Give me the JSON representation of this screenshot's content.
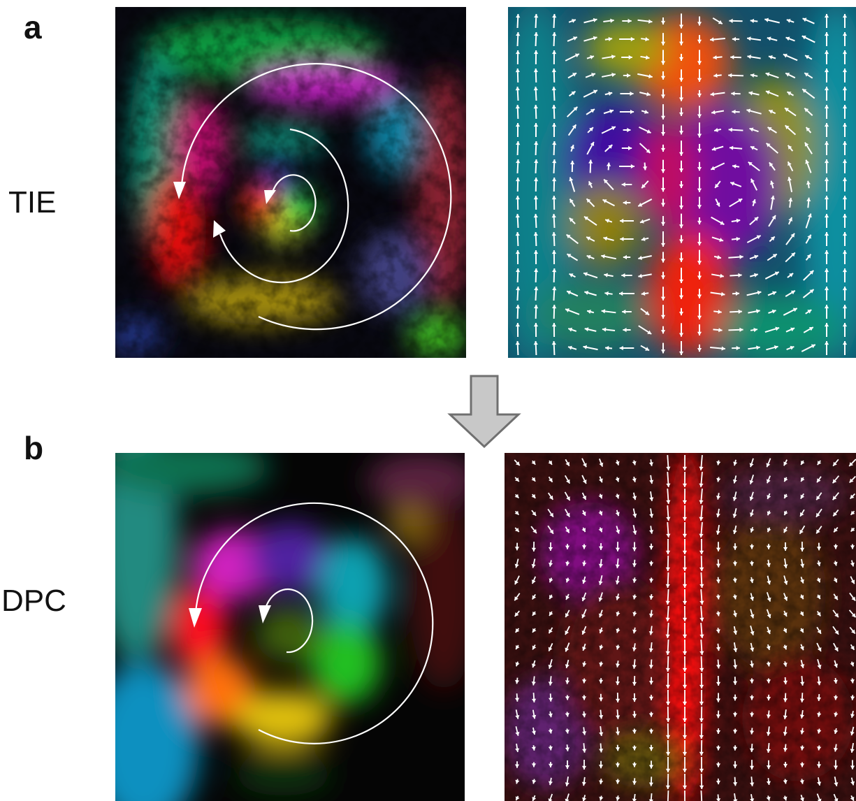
{
  "panels": {
    "a": {
      "letter": "a",
      "method": "TIE"
    },
    "b": {
      "letter": "b",
      "method": "DPC"
    }
  },
  "icons": {
    "transition_arrow": "down-arrow-icon",
    "rotation_arrow": "circular-arrow-icon"
  },
  "colors": {
    "red": "#ff2020",
    "green": "#10c020",
    "blue": "#2040ff",
    "magenta": "#e020e0",
    "cyan": "#10b0c0",
    "arrow_gray": "#c8c8c8",
    "arrow_outline": "#707070"
  }
}
